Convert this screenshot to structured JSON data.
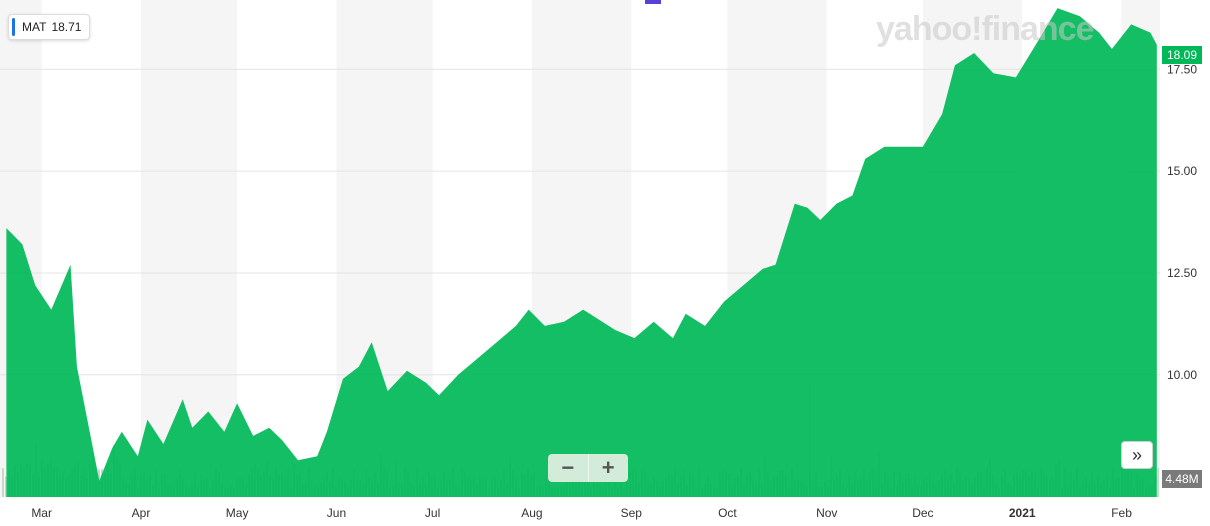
{
  "legend": {
    "symbol": "MAT",
    "value": "18.71"
  },
  "watermark": "yahoo!finance",
  "last_price_label": "18.09",
  "volume_label": "4.48M",
  "zoom": {
    "minus": "−",
    "plus": "+"
  },
  "expand_icon": "double-chevron-right-icon",
  "colors": {
    "area": "#00b858",
    "band": "#f5f5f5",
    "volume": "#c5d9cd",
    "price_tag": "#00b858",
    "volume_tag": "#7a7a7a"
  },
  "chart_data": {
    "type": "area",
    "ylim": [
      7.0,
      19.2
    ],
    "yticks": [
      "10.00",
      "12.50",
      "15.00",
      "17.50"
    ],
    "ytick_values": [
      10.0,
      12.5,
      15.0,
      17.5
    ],
    "xticks": [
      "Mar",
      "Apr",
      "May",
      "Jun",
      "Jul",
      "Aug",
      "Sep",
      "Oct",
      "Nov",
      "Dec",
      "2021",
      "Feb"
    ],
    "xtick_bold": [
      false,
      false,
      false,
      false,
      false,
      false,
      false,
      false,
      false,
      false,
      true,
      false
    ],
    "x": [
      "2020-02-19",
      "2020-02-24",
      "2020-02-28",
      "2020-03-04",
      "2020-03-10",
      "2020-03-12",
      "2020-03-16",
      "2020-03-19",
      "2020-03-23",
      "2020-03-26",
      "2020-03-31",
      "2020-04-03",
      "2020-04-08",
      "2020-04-14",
      "2020-04-17",
      "2020-04-22",
      "2020-04-27",
      "2020-05-01",
      "2020-05-06",
      "2020-05-11",
      "2020-05-15",
      "2020-05-20",
      "2020-05-26",
      "2020-05-29",
      "2020-06-03",
      "2020-06-08",
      "2020-06-12",
      "2020-06-17",
      "2020-06-23",
      "2020-06-29",
      "2020-07-03",
      "2020-07-09",
      "2020-07-15",
      "2020-07-21",
      "2020-07-27",
      "2020-07-31",
      "2020-08-05",
      "2020-08-11",
      "2020-08-17",
      "2020-08-21",
      "2020-08-27",
      "2020-09-02",
      "2020-09-08",
      "2020-09-14",
      "2020-09-18",
      "2020-09-24",
      "2020-09-30",
      "2020-10-06",
      "2020-10-12",
      "2020-10-16",
      "2020-10-22",
      "2020-10-26",
      "2020-10-30",
      "2020-11-04",
      "2020-11-09",
      "2020-11-13",
      "2020-11-19",
      "2020-11-25",
      "2020-12-01",
      "2020-12-07",
      "2020-12-11",
      "2020-12-17",
      "2020-12-23",
      "2020-12-30",
      "2021-01-06",
      "2021-01-12",
      "2021-01-19",
      "2021-01-25",
      "2021-01-29",
      "2021-02-04",
      "2021-02-10",
      "2021-02-12"
    ],
    "y": [
      13.6,
      13.2,
      12.2,
      11.6,
      12.7,
      10.2,
      8.6,
      7.4,
      8.2,
      8.6,
      8.0,
      8.9,
      8.3,
      9.4,
      8.7,
      9.1,
      8.6,
      9.3,
      8.5,
      8.7,
      8.4,
      7.9,
      8.0,
      8.6,
      9.9,
      10.2,
      10.8,
      9.6,
      10.1,
      9.8,
      9.5,
      10.0,
      10.4,
      10.8,
      11.2,
      11.6,
      11.2,
      11.3,
      11.6,
      11.4,
      11.1,
      10.9,
      11.3,
      10.9,
      11.5,
      11.2,
      11.8,
      12.2,
      12.6,
      12.7,
      14.2,
      14.1,
      13.8,
      14.2,
      14.4,
      15.3,
      15.6,
      15.6,
      15.6,
      16.4,
      17.6,
      17.9,
      17.4,
      17.3,
      18.2,
      19.0,
      18.8,
      18.4,
      18.0,
      18.6,
      18.4,
      18.1
    ],
    "volume_max": 8.2,
    "volume_unit": "M",
    "last_volume": 4.48
  }
}
